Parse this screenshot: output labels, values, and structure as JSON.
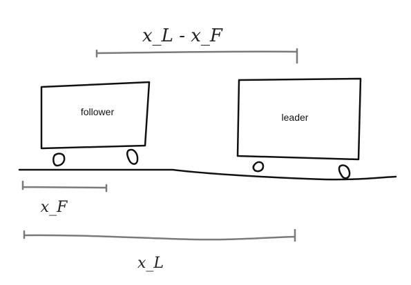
{
  "diagram": {
    "follower": {
      "label": "follower"
    },
    "leader": {
      "label": "leader"
    },
    "measures": {
      "gap": {
        "label": "x_L - x_F"
      },
      "follower_position": {
        "label": "x_F"
      },
      "leader_position": {
        "label": "x_L"
      }
    },
    "colors": {
      "ink": "#111111",
      "measure_ink": "#7a7a7a",
      "handwriting": "#222222"
    }
  }
}
